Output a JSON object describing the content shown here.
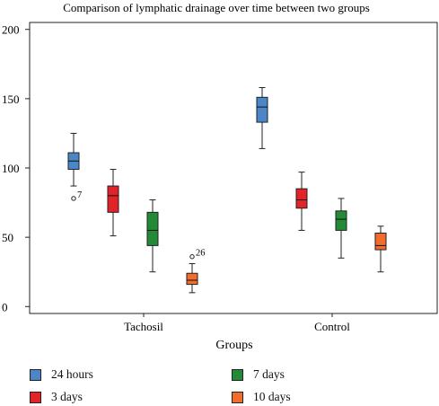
{
  "chart_data": {
    "type": "boxplot",
    "title": "Comparison of lymphatic drainage over time between two groups",
    "xlabel": "Groups",
    "ylabel": "",
    "ylim": [
      -5,
      205
    ],
    "yticks": [
      0,
      50,
      100,
      150,
      200
    ],
    "categories": [
      "Tachosil",
      "Control"
    ],
    "series": [
      {
        "name": "24 hours",
        "color": "#4a86c8",
        "boxes": [
          {
            "min": 87,
            "q1": 99,
            "median": 105,
            "q3": 111,
            "max": 125,
            "outliers": [
              {
                "value": 78,
                "label": "7"
              }
            ]
          },
          {
            "min": 114,
            "q1": 133,
            "median": 144,
            "q3": 151,
            "max": 158,
            "outliers": []
          }
        ]
      },
      {
        "name": "3 days",
        "color": "#e2232a",
        "boxes": [
          {
            "min": 51,
            "q1": 68,
            "median": 80,
            "q3": 87,
            "max": 99,
            "outliers": []
          },
          {
            "min": 55,
            "q1": 71,
            "median": 77,
            "q3": 85,
            "max": 97,
            "outliers": []
          }
        ]
      },
      {
        "name": "7 days",
        "color": "#238b38",
        "boxes": [
          {
            "min": 25,
            "q1": 44,
            "median": 55,
            "q3": 68,
            "max": 77,
            "outliers": []
          },
          {
            "min": 35,
            "q1": 55,
            "median": 63,
            "q3": 69,
            "max": 78,
            "outliers": []
          }
        ]
      },
      {
        "name": "10 days",
        "color": "#f26c2e",
        "boxes": [
          {
            "min": 10,
            "q1": 16,
            "median": 19,
            "q3": 24,
            "max": 31,
            "outliers": [
              {
                "value": 36,
                "label": "26"
              }
            ]
          },
          {
            "min": 25,
            "q1": 41,
            "median": 44,
            "q3": 53,
            "max": 58,
            "outliers": []
          }
        ]
      }
    ],
    "legend": {
      "position": "bottom",
      "columns": 2
    },
    "grid": false
  }
}
